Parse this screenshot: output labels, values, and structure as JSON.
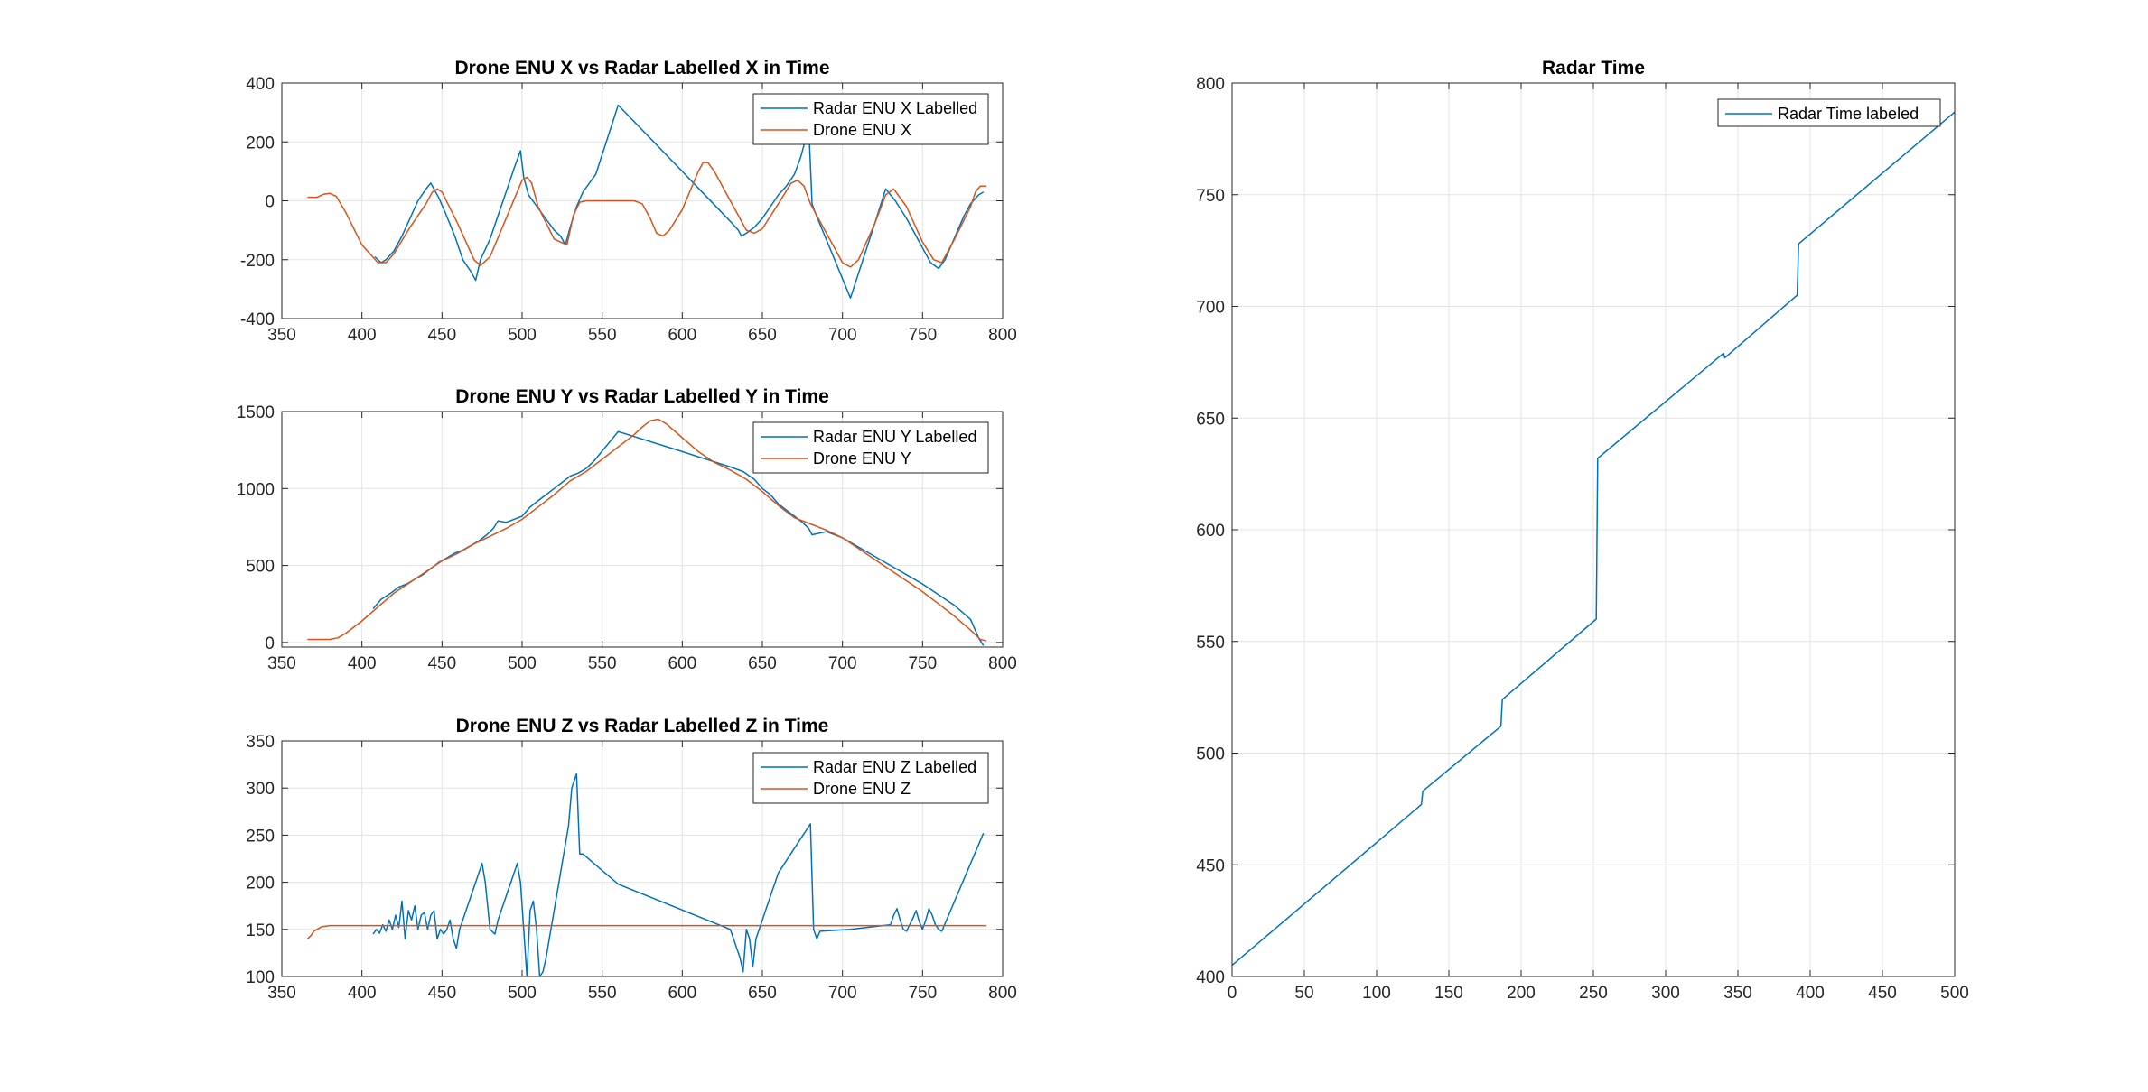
{
  "chart_data": [
    {
      "type": "line",
      "title": "Drone ENU X vs Radar Labelled X in Time",
      "xlabel": "",
      "ylabel": "",
      "xlim": [
        350,
        800
      ],
      "ylim": [
        -400,
        400
      ],
      "xticks": [
        "350",
        "400",
        "450",
        "500",
        "550",
        "600",
        "650",
        "700",
        "750",
        "800"
      ],
      "yticks": [
        "-400",
        "-200",
        "0",
        "200",
        "400"
      ],
      "grid": true,
      "legend_position": "top-right",
      "series": [
        {
          "name": "Radar ENU X Labelled",
          "color": "#0072BD",
          "x": [
            408,
            412,
            415,
            420,
            425,
            430,
            435,
            440,
            443,
            448,
            452,
            458,
            463,
            468,
            471,
            474,
            480,
            485,
            490,
            495,
            499,
            501,
            504,
            508,
            512,
            516,
            520,
            524,
            527,
            530,
            534,
            538,
            542,
            546,
            560,
            600,
            630,
            635,
            637,
            640,
            645,
            650,
            655,
            660,
            665,
            670,
            674,
            677,
            679,
            681,
            683,
            705,
            720,
            727,
            733,
            740,
            745,
            750,
            755,
            760,
            764,
            768,
            772,
            776,
            780,
            785,
            788
          ],
          "y": [
            -190,
            -210,
            -200,
            -170,
            -120,
            -60,
            0,
            40,
            60,
            10,
            -40,
            -120,
            -200,
            -240,
            -270,
            -200,
            -130,
            -50,
            30,
            110,
            170,
            80,
            20,
            -10,
            -40,
            -70,
            -100,
            -120,
            -150,
            -90,
            -20,
            30,
            60,
            90,
            325,
            100,
            -70,
            -100,
            -120,
            -110,
            -90,
            -60,
            -20,
            20,
            50,
            90,
            150,
            210,
            250,
            -10,
            -40,
            -330,
            -80,
            40,
            0,
            -60,
            -110,
            -160,
            -210,
            -230,
            -200,
            -150,
            -100,
            -50,
            -10,
            20,
            30
          ]
        },
        {
          "name": "Drone ENU X",
          "color": "#D95319",
          "x": [
            366,
            372,
            376,
            380,
            384,
            390,
            400,
            410,
            415,
            420,
            430,
            440,
            444,
            447,
            450,
            460,
            470,
            474,
            480,
            490,
            500,
            503,
            506,
            510,
            520,
            528,
            532,
            536,
            540,
            560,
            570,
            575,
            580,
            584,
            588,
            592,
            600,
            610,
            613,
            616,
            620,
            630,
            640,
            645,
            650,
            660,
            668,
            672,
            676,
            680,
            690,
            700,
            705,
            710,
            720,
            727,
            732,
            740,
            750,
            757,
            762,
            770,
            780,
            783,
            786,
            790
          ],
          "y": [
            12,
            12,
            22,
            25,
            15,
            -40,
            -150,
            -210,
            -210,
            -180,
            -90,
            -10,
            30,
            40,
            30,
            -80,
            -200,
            -220,
            -190,
            -60,
            70,
            80,
            60,
            -20,
            -130,
            -150,
            -50,
            -5,
            0,
            0,
            0,
            -10,
            -60,
            -110,
            -120,
            -100,
            -30,
            100,
            130,
            130,
            100,
            0,
            -100,
            -110,
            -95,
            -10,
            60,
            70,
            50,
            -10,
            -110,
            -210,
            -225,
            -200,
            -80,
            20,
            40,
            -20,
            -140,
            -200,
            -210,
            -130,
            -20,
            30,
            50,
            50
          ]
        }
      ]
    },
    {
      "type": "line",
      "title": "Drone ENU Y vs Radar Labelled Y in Time",
      "xlabel": "",
      "ylabel": "",
      "xlim": [
        350,
        800
      ],
      "ylim": [
        -30,
        1500
      ],
      "xticks": [
        "350",
        "400",
        "450",
        "500",
        "550",
        "600",
        "650",
        "700",
        "750",
        "800"
      ],
      "yticks": [
        "0",
        "500",
        "1000",
        "1500"
      ],
      "grid": true,
      "legend_position": "top-right",
      "series": [
        {
          "name": "Radar ENU Y Labelled",
          "color": "#0072BD",
          "x": [
            407,
            412,
            418,
            423,
            428,
            433,
            438,
            443,
            448,
            453,
            458,
            463,
            468,
            473,
            478,
            482,
            485,
            490,
            495,
            500,
            505,
            510,
            515,
            520,
            525,
            530,
            535,
            540,
            545,
            560,
            600,
            630,
            638,
            645,
            650,
            655,
            660,
            665,
            670,
            675,
            677,
            679,
            681,
            690,
            700,
            710,
            720,
            730,
            740,
            750,
            760,
            770,
            780,
            785,
            788
          ],
          "y": [
            220,
            280,
            320,
            360,
            380,
            410,
            440,
            480,
            520,
            550,
            580,
            600,
            630,
            660,
            700,
            740,
            790,
            780,
            800,
            820,
            880,
            920,
            960,
            1000,
            1040,
            1080,
            1100,
            1130,
            1180,
            1370,
            1240,
            1140,
            1110,
            1060,
            1000,
            960,
            900,
            860,
            820,
            780,
            760,
            740,
            700,
            720,
            680,
            620,
            560,
            500,
            440,
            380,
            310,
            240,
            150,
            30,
            -20
          ]
        },
        {
          "name": "Drone ENU Y",
          "color": "#D95319",
          "x": [
            366,
            374,
            380,
            385,
            390,
            400,
            410,
            420,
            430,
            440,
            450,
            460,
            470,
            480,
            490,
            500,
            510,
            520,
            530,
            540,
            550,
            560,
            570,
            575,
            580,
            585,
            590,
            600,
            610,
            620,
            630,
            640,
            650,
            660,
            670,
            680,
            690,
            700,
            710,
            720,
            730,
            740,
            750,
            760,
            770,
            780,
            786,
            790
          ],
          "y": [
            20,
            20,
            20,
            30,
            60,
            140,
            230,
            320,
            390,
            460,
            530,
            580,
            640,
            690,
            740,
            800,
            880,
            960,
            1050,
            1110,
            1190,
            1270,
            1350,
            1400,
            1440,
            1450,
            1420,
            1330,
            1240,
            1170,
            1120,
            1060,
            980,
            890,
            810,
            770,
            730,
            680,
            610,
            540,
            470,
            400,
            330,
            250,
            170,
            80,
            20,
            10
          ]
        }
      ]
    },
    {
      "type": "line",
      "title": "Drone ENU Z vs Radar Labelled Z in Time",
      "xlabel": "",
      "ylabel": "",
      "xlim": [
        350,
        800
      ],
      "ylim": [
        100,
        350
      ],
      "xticks": [
        "350",
        "400",
        "450",
        "500",
        "550",
        "600",
        "650",
        "700",
        "750",
        "800"
      ],
      "yticks": [
        "100",
        "150",
        "200",
        "250",
        "300",
        "350"
      ],
      "grid": true,
      "legend_position": "top-right",
      "series": [
        {
          "name": "Radar ENU Z Labelled",
          "color": "#0072BD",
          "x": [
            407,
            409,
            411,
            413,
            415,
            417,
            419,
            421,
            423,
            425,
            427,
            429,
            431,
            433,
            435,
            437,
            439,
            441,
            443,
            445,
            447,
            449,
            451,
            453,
            455,
            457,
            459,
            461,
            463,
            465,
            467,
            469,
            471,
            473,
            475,
            477,
            480,
            483,
            485,
            487,
            489,
            491,
            493,
            495,
            497,
            499,
            501,
            503,
            505,
            507,
            509,
            511,
            513,
            515,
            517,
            519,
            521,
            523,
            525,
            527,
            529,
            531,
            534,
            536,
            538,
            560,
            630,
            632,
            634,
            636,
            638,
            640,
            642,
            644,
            646,
            648,
            650,
            652,
            654,
            656,
            658,
            660,
            680,
            682,
            684,
            686,
            705,
            730,
            732,
            734,
            736,
            738,
            740,
            742,
            744,
            746,
            748,
            750,
            752,
            754,
            756,
            758,
            760,
            762,
            788
          ],
          "y": [
            145,
            150,
            146,
            155,
            148,
            160,
            150,
            165,
            152,
            180,
            140,
            170,
            160,
            175,
            150,
            165,
            168,
            150,
            165,
            170,
            140,
            150,
            145,
            150,
            160,
            140,
            130,
            150,
            160,
            170,
            180,
            190,
            200,
            210,
            220,
            200,
            150,
            145,
            160,
            170,
            180,
            190,
            200,
            210,
            220,
            200,
            150,
            100,
            170,
            180,
            150,
            100,
            105,
            120,
            140,
            160,
            180,
            200,
            220,
            240,
            260,
            300,
            315,
            230,
            230,
            198,
            150,
            140,
            130,
            120,
            105,
            150,
            140,
            110,
            140,
            150,
            160,
            170,
            180,
            190,
            200,
            210,
            262,
            150,
            140,
            148,
            150,
            155,
            165,
            172,
            160,
            150,
            148,
            155,
            162,
            170,
            158,
            150,
            160,
            172,
            165,
            155,
            150,
            148,
            252
          ]
        },
        {
          "name": "Drone ENU Z",
          "color": "#D95319",
          "x": [
            366,
            368,
            370,
            372,
            375,
            380,
            400,
            450,
            500,
            550,
            600,
            650,
            700,
            750,
            790
          ],
          "y": [
            140,
            143,
            148,
            150,
            153,
            154,
            154,
            154,
            154,
            154,
            154,
            154,
            154,
            154,
            154
          ]
        }
      ]
    },
    {
      "type": "line",
      "title": "Radar Time",
      "xlabel": "",
      "ylabel": "",
      "xlim": [
        0,
        500
      ],
      "ylim": [
        400,
        800
      ],
      "xticks": [
        "0",
        "50",
        "100",
        "150",
        "200",
        "250",
        "300",
        "350",
        "400",
        "450",
        "500"
      ],
      "yticks": [
        "400",
        "450",
        "500",
        "550",
        "600",
        "650",
        "700",
        "750",
        "800"
      ],
      "grid": true,
      "legend_position": "top-right",
      "series": [
        {
          "name": "Radar Time labeled",
          "color": "#0072BD",
          "x": [
            0,
            131,
            132,
            186,
            187,
            252,
            253,
            340,
            341,
            391,
            392,
            500
          ],
          "y": [
            405,
            477,
            483,
            512,
            524,
            560,
            632,
            679,
            677,
            705,
            728,
            787
          ]
        }
      ]
    }
  ]
}
